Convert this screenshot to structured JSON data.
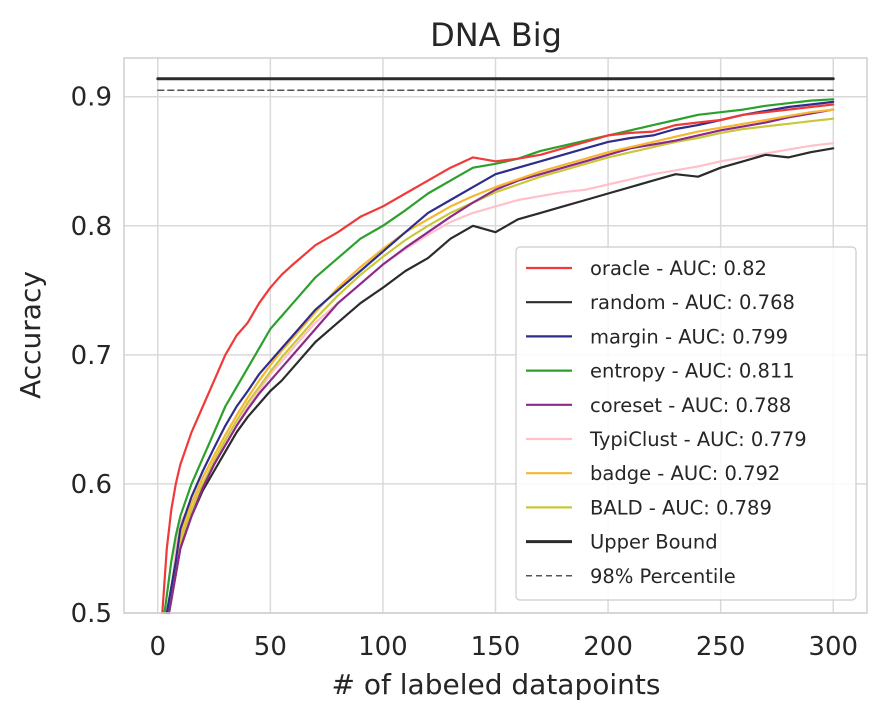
{
  "chart_data": {
    "type": "line",
    "title": "DNA Big",
    "xlabel": "# of labeled datapoints",
    "ylabel": "Accuracy",
    "xlim": [
      -15,
      315
    ],
    "ylim": [
      0.5,
      0.93
    ],
    "xticks": [
      0,
      50,
      100,
      150,
      200,
      250,
      300
    ],
    "xtick_labels": [
      "0",
      "50",
      "100",
      "150",
      "200",
      "250",
      "300"
    ],
    "yticks": [
      0.5,
      0.6,
      0.7,
      0.8,
      0.9
    ],
    "ytick_labels": [
      "0.5",
      "0.6",
      "0.7",
      "0.8",
      "0.9"
    ],
    "grid": true,
    "legend_position": "lower-right",
    "series": [
      {
        "name": "oracle - AUC: 0.82",
        "color": "#f03a3a",
        "style": "solid",
        "x": [
          2,
          4,
          6,
          8,
          10,
          15,
          20,
          25,
          30,
          35,
          40,
          45,
          50,
          55,
          60,
          70,
          80,
          90,
          100,
          110,
          120,
          130,
          140,
          150,
          160,
          170,
          180,
          190,
          200,
          210,
          220,
          230,
          240,
          250,
          260,
          270,
          280,
          290,
          300
        ],
        "y": [
          0.5,
          0.55,
          0.58,
          0.6,
          0.615,
          0.64,
          0.66,
          0.68,
          0.7,
          0.715,
          0.725,
          0.74,
          0.752,
          0.762,
          0.77,
          0.785,
          0.795,
          0.807,
          0.815,
          0.825,
          0.835,
          0.845,
          0.853,
          0.85,
          0.852,
          0.855,
          0.86,
          0.865,
          0.87,
          0.872,
          0.873,
          0.878,
          0.88,
          0.882,
          0.886,
          0.888,
          0.89,
          0.892,
          0.894
        ]
      },
      {
        "name": "random - AUC: 0.768",
        "color": "#2b2b2b",
        "style": "solid",
        "x": [
          5,
          8,
          10,
          15,
          20,
          25,
          30,
          35,
          40,
          45,
          50,
          55,
          60,
          70,
          80,
          90,
          100,
          110,
          120,
          130,
          140,
          150,
          160,
          170,
          180,
          190,
          200,
          210,
          220,
          230,
          240,
          250,
          260,
          270,
          280,
          290,
          300
        ],
        "y": [
          0.5,
          0.53,
          0.55,
          0.575,
          0.595,
          0.61,
          0.625,
          0.64,
          0.652,
          0.662,
          0.672,
          0.68,
          0.69,
          0.71,
          0.725,
          0.74,
          0.752,
          0.765,
          0.775,
          0.79,
          0.8,
          0.795,
          0.805,
          0.81,
          0.815,
          0.82,
          0.825,
          0.83,
          0.835,
          0.84,
          0.838,
          0.845,
          0.85,
          0.855,
          0.853,
          0.857,
          0.86
        ]
      },
      {
        "name": "margin - AUC: 0.799",
        "color": "#2d2d8c",
        "style": "solid",
        "x": [
          4,
          8,
          10,
          15,
          20,
          25,
          30,
          35,
          40,
          45,
          50,
          55,
          60,
          70,
          80,
          90,
          100,
          110,
          120,
          130,
          140,
          150,
          160,
          170,
          180,
          190,
          200,
          210,
          220,
          230,
          240,
          250,
          260,
          270,
          280,
          290,
          300
        ],
        "y": [
          0.5,
          0.54,
          0.565,
          0.59,
          0.61,
          0.628,
          0.645,
          0.66,
          0.672,
          0.685,
          0.695,
          0.705,
          0.715,
          0.735,
          0.75,
          0.765,
          0.78,
          0.795,
          0.81,
          0.82,
          0.83,
          0.84,
          0.845,
          0.85,
          0.855,
          0.86,
          0.865,
          0.868,
          0.87,
          0.875,
          0.878,
          0.882,
          0.886,
          0.889,
          0.892,
          0.894,
          0.896
        ]
      },
      {
        "name": "entropy - AUC: 0.811",
        "color": "#2ca02c",
        "style": "solid",
        "x": [
          3,
          6,
          8,
          10,
          15,
          20,
          25,
          30,
          35,
          40,
          45,
          50,
          55,
          60,
          70,
          80,
          90,
          100,
          110,
          120,
          130,
          140,
          150,
          160,
          170,
          180,
          190,
          200,
          210,
          220,
          230,
          240,
          250,
          260,
          270,
          280,
          290,
          300
        ],
        "y": [
          0.5,
          0.54,
          0.56,
          0.575,
          0.6,
          0.62,
          0.64,
          0.66,
          0.675,
          0.69,
          0.705,
          0.72,
          0.73,
          0.74,
          0.76,
          0.775,
          0.79,
          0.8,
          0.812,
          0.825,
          0.835,
          0.845,
          0.848,
          0.852,
          0.858,
          0.862,
          0.866,
          0.87,
          0.874,
          0.878,
          0.882,
          0.886,
          0.888,
          0.89,
          0.893,
          0.895,
          0.897,
          0.898
        ]
      },
      {
        "name": "coreset - AUC: 0.788",
        "color": "#8b2a8b",
        "style": "solid",
        "x": [
          5,
          8,
          10,
          15,
          20,
          25,
          30,
          35,
          40,
          45,
          50,
          55,
          60,
          70,
          80,
          90,
          100,
          110,
          120,
          130,
          140,
          150,
          160,
          170,
          180,
          190,
          200,
          210,
          220,
          230,
          240,
          250,
          260,
          270,
          280,
          290,
          300
        ],
        "y": [
          0.5,
          0.53,
          0.55,
          0.575,
          0.597,
          0.615,
          0.63,
          0.645,
          0.658,
          0.67,
          0.68,
          0.69,
          0.7,
          0.72,
          0.74,
          0.755,
          0.77,
          0.783,
          0.795,
          0.807,
          0.818,
          0.828,
          0.835,
          0.84,
          0.845,
          0.85,
          0.855,
          0.86,
          0.863,
          0.866,
          0.87,
          0.874,
          0.877,
          0.88,
          0.884,
          0.887,
          0.89
        ]
      },
      {
        "name": "TypiClust - AUC: 0.779",
        "color": "#ffc0cb",
        "style": "solid",
        "x": [
          5,
          8,
          10,
          15,
          20,
          25,
          30,
          35,
          40,
          45,
          50,
          55,
          60,
          70,
          80,
          90,
          100,
          110,
          120,
          130,
          140,
          150,
          160,
          170,
          180,
          190,
          200,
          210,
          220,
          230,
          240,
          250,
          260,
          270,
          280,
          290,
          300
        ],
        "y": [
          0.5,
          0.55,
          0.57,
          0.585,
          0.6,
          0.615,
          0.63,
          0.645,
          0.66,
          0.672,
          0.685,
          0.695,
          0.705,
          0.725,
          0.74,
          0.755,
          0.77,
          0.782,
          0.793,
          0.803,
          0.81,
          0.815,
          0.82,
          0.823,
          0.826,
          0.828,
          0.832,
          0.836,
          0.84,
          0.843,
          0.846,
          0.85,
          0.853,
          0.856,
          0.859,
          0.862,
          0.864
        ]
      },
      {
        "name": "badge - AUC: 0.792",
        "color": "#f5b731",
        "style": "solid",
        "x": [
          4,
          8,
          10,
          15,
          20,
          25,
          30,
          35,
          40,
          45,
          50,
          55,
          60,
          70,
          80,
          90,
          100,
          110,
          120,
          130,
          140,
          150,
          160,
          170,
          180,
          190,
          200,
          210,
          220,
          230,
          240,
          250,
          260,
          270,
          280,
          290,
          300
        ],
        "y": [
          0.5,
          0.54,
          0.56,
          0.585,
          0.605,
          0.622,
          0.638,
          0.653,
          0.667,
          0.68,
          0.692,
          0.703,
          0.713,
          0.733,
          0.752,
          0.768,
          0.782,
          0.795,
          0.805,
          0.815,
          0.823,
          0.83,
          0.836,
          0.842,
          0.847,
          0.852,
          0.857,
          0.861,
          0.865,
          0.869,
          0.873,
          0.876,
          0.879,
          0.882,
          0.885,
          0.888,
          0.89
        ]
      },
      {
        "name": "BALD - AUC: 0.789",
        "color": "#c8c83a",
        "style": "solid",
        "x": [
          5,
          8,
          10,
          15,
          20,
          25,
          30,
          35,
          40,
          45,
          50,
          55,
          60,
          70,
          80,
          90,
          100,
          110,
          120,
          130,
          140,
          150,
          160,
          170,
          180,
          190,
          200,
          210,
          220,
          230,
          240,
          250,
          260,
          270,
          280,
          290,
          300
        ],
        "y": [
          0.5,
          0.53,
          0.555,
          0.58,
          0.6,
          0.618,
          0.634,
          0.649,
          0.663,
          0.675,
          0.687,
          0.698,
          0.708,
          0.728,
          0.746,
          0.762,
          0.776,
          0.789,
          0.8,
          0.81,
          0.818,
          0.826,
          0.832,
          0.838,
          0.843,
          0.848,
          0.853,
          0.857,
          0.861,
          0.865,
          0.868,
          0.872,
          0.875,
          0.877,
          0.879,
          0.881,
          0.883
        ]
      },
      {
        "name": "Upper Bound",
        "color": "#2b2b2b",
        "style": "solid-thick",
        "x": [
          0,
          300
        ],
        "y": [
          0.914,
          0.914
        ]
      },
      {
        "name": "98% Percentile",
        "color": "#555555",
        "style": "dashed",
        "x": [
          0,
          300
        ],
        "y": [
          0.905,
          0.905
        ]
      }
    ]
  }
}
